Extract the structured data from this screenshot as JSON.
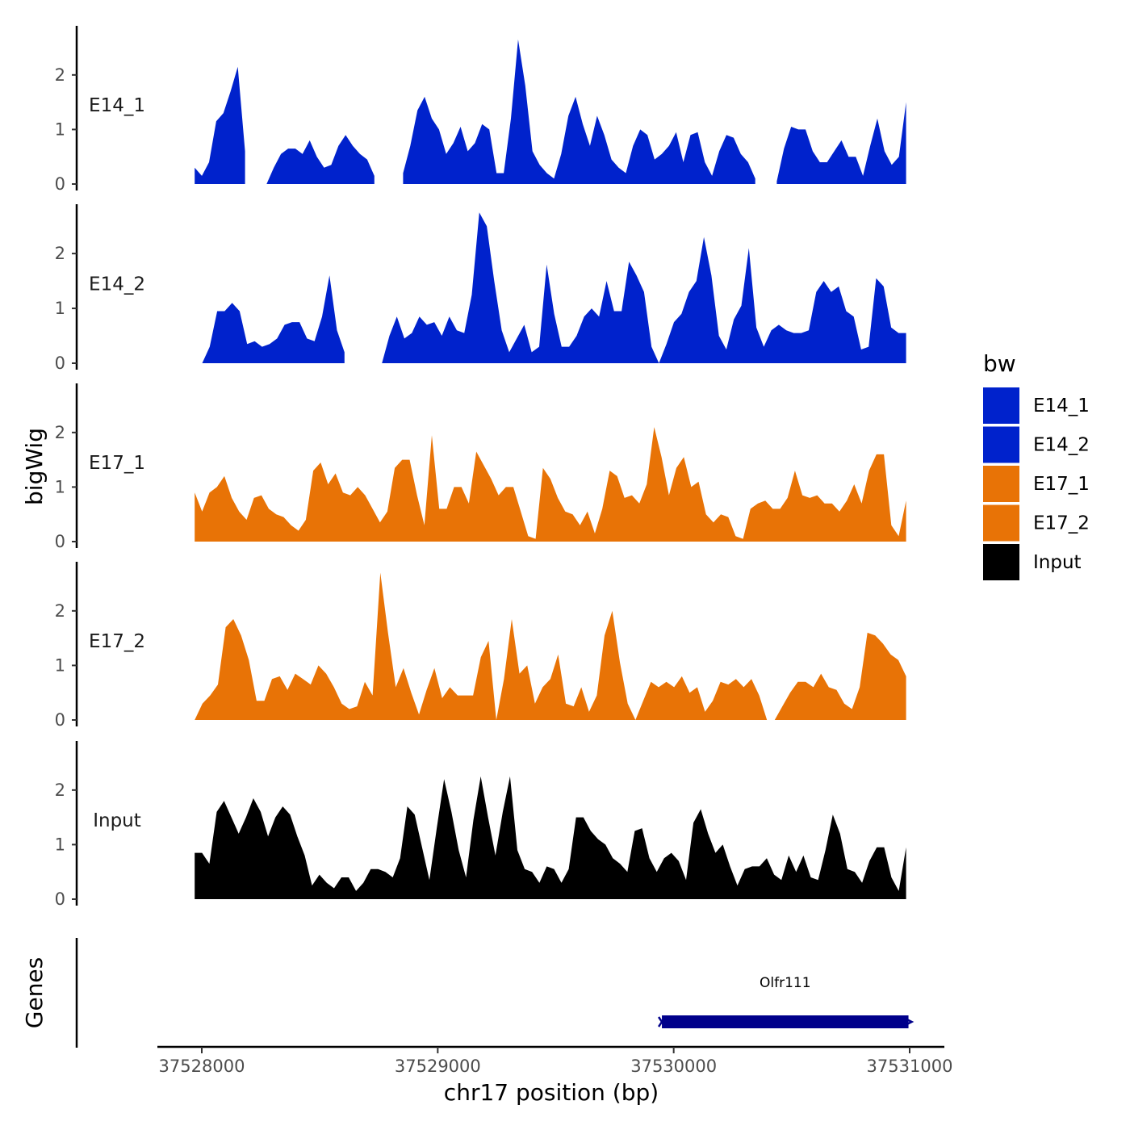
{
  "chart_data": {
    "type": "area",
    "ylabel": "bigWig",
    "xlabel": "chr17 position (bp)",
    "xlim": [
      37527850,
      37531150
    ],
    "data_xrange": [
      37527970,
      37530985
    ],
    "ylim": [
      0,
      2.9
    ],
    "y_ticks": [
      "0",
      "1",
      "2"
    ],
    "x_ticks": [
      {
        "value": 37528000,
        "label": "37528000"
      },
      {
        "value": 37529000,
        "label": "37529000"
      },
      {
        "value": 37530000,
        "label": "37530000"
      },
      {
        "value": 37531000,
        "label": "37531000"
      }
    ],
    "legend": {
      "title": "bw",
      "entries": [
        {
          "label": "E14_1",
          "color": "#0022CC"
        },
        {
          "label": "E14_2",
          "color": "#0022CC"
        },
        {
          "label": "E17_1",
          "color": "#E87306"
        },
        {
          "label": "E17_2",
          "color": "#E87306"
        },
        {
          "label": "Input",
          "color": "#000000"
        }
      ]
    },
    "tracks": [
      {
        "name": "E14_1",
        "color": "#0022CC",
        "values": [
          0.3,
          0.15,
          0.4,
          1.15,
          1.3,
          1.7,
          2.15,
          0.6,
          null,
          null,
          0.0,
          0.3,
          0.55,
          0.65,
          0.65,
          0.55,
          0.8,
          0.5,
          0.3,
          0.35,
          0.7,
          0.9,
          0.7,
          0.55,
          0.45,
          0.15,
          null,
          null,
          null,
          0.2,
          0.7,
          1.35,
          1.6,
          1.2,
          1.0,
          0.55,
          0.75,
          1.05,
          0.6,
          0.75,
          1.1,
          1.0,
          0.2,
          0.2,
          1.2,
          2.65,
          1.8,
          0.6,
          0.35,
          0.2,
          0.1,
          0.55,
          1.25,
          1.6,
          1.1,
          0.7,
          1.25,
          0.9,
          0.45,
          0.3,
          0.2,
          0.7,
          1.0,
          0.9,
          0.45,
          0.55,
          0.7,
          0.95,
          0.4,
          0.9,
          0.95,
          0.4,
          0.15,
          0.6,
          0.9,
          0.85,
          0.55,
          0.4,
          0.1,
          null,
          null,
          0.05,
          0.65,
          1.05,
          1.0,
          1.0,
          0.6,
          0.4,
          0.4,
          0.6,
          0.8,
          0.5,
          0.5,
          0.15,
          0.7,
          1.2,
          0.6,
          0.35,
          0.5,
          1.5
        ]
      },
      {
        "name": "E14_2",
        "color": "#0022CC",
        "values": [
          0.0,
          0.0,
          0.3,
          0.95,
          0.95,
          1.1,
          0.95,
          0.35,
          0.4,
          0.3,
          0.35,
          0.45,
          0.7,
          0.75,
          0.75,
          0.45,
          0.4,
          0.85,
          1.6,
          0.6,
          0.2,
          null,
          null,
          null,
          0.0,
          0.0,
          0.5,
          0.85,
          0.45,
          0.55,
          0.85,
          0.7,
          0.75,
          0.5,
          0.85,
          0.6,
          0.55,
          1.25,
          2.75,
          2.5,
          1.5,
          0.6,
          0.2,
          0.45,
          0.7,
          0.2,
          0.3,
          1.8,
          0.9,
          0.3,
          0.3,
          0.5,
          0.85,
          1.0,
          0.85,
          1.5,
          0.95,
          0.95,
          1.85,
          1.6,
          1.3,
          0.3,
          0.0,
          0.35,
          0.75,
          0.9,
          1.3,
          1.5,
          2.3,
          1.6,
          0.5,
          0.25,
          0.8,
          1.05,
          2.1,
          0.65,
          0.3,
          0.6,
          0.7,
          0.6,
          0.55,
          0.55,
          0.6,
          1.3,
          1.5,
          1.3,
          1.4,
          0.95,
          0.85,
          0.25,
          0.3,
          1.55,
          1.4,
          0.65,
          0.55,
          0.55
        ]
      },
      {
        "name": "E17_1",
        "color": "#E87306",
        "values": [
          0.9,
          0.55,
          0.9,
          1.0,
          1.2,
          0.8,
          0.55,
          0.4,
          0.8,
          0.85,
          0.6,
          0.5,
          0.45,
          0.3,
          0.2,
          0.4,
          1.3,
          1.45,
          1.05,
          1.25,
          0.9,
          0.85,
          1.0,
          0.85,
          0.6,
          0.35,
          0.55,
          1.35,
          1.5,
          1.5,
          0.85,
          0.3,
          1.95,
          0.6,
          0.6,
          1.0,
          1.0,
          0.7,
          1.65,
          1.4,
          1.15,
          0.85,
          1.0,
          1.0,
          0.55,
          0.1,
          0.05,
          1.35,
          1.15,
          0.8,
          0.55,
          0.5,
          0.3,
          0.55,
          0.15,
          0.6,
          1.3,
          1.2,
          0.8,
          0.85,
          0.7,
          1.05,
          2.1,
          1.55,
          0.85,
          1.35,
          1.55,
          1.0,
          1.1,
          0.5,
          0.35,
          0.5,
          0.45,
          0.1,
          0.05,
          0.6,
          0.7,
          0.75,
          0.6,
          0.6,
          0.8,
          1.3,
          0.85,
          0.8,
          0.85,
          0.7,
          0.7,
          0.55,
          0.75,
          1.05,
          0.7,
          1.3,
          1.6,
          1.6,
          0.3,
          0.1,
          0.75
        ]
      },
      {
        "name": "E17_2",
        "color": "#E87306",
        "values": [
          0.0,
          0.3,
          0.45,
          0.65,
          1.7,
          1.85,
          1.55,
          1.1,
          0.35,
          0.35,
          0.75,
          0.8,
          0.55,
          0.85,
          0.75,
          0.65,
          1.0,
          0.85,
          0.6,
          0.3,
          0.2,
          0.25,
          0.7,
          0.45,
          2.7,
          1.6,
          0.6,
          0.95,
          0.5,
          0.1,
          0.55,
          0.95,
          0.4,
          0.6,
          0.45,
          0.45,
          0.45,
          1.15,
          1.45,
          0.0,
          0.75,
          1.85,
          0.85,
          1.0,
          0.3,
          0.6,
          0.75,
          1.2,
          0.3,
          0.25,
          0.6,
          0.15,
          0.45,
          1.55,
          2.0,
          1.05,
          0.3,
          0.0,
          0.35,
          0.7,
          0.6,
          0.7,
          0.6,
          0.8,
          0.5,
          0.6,
          0.15,
          0.35,
          0.7,
          0.65,
          0.75,
          0.6,
          0.75,
          0.45,
          0.0,
          0.0,
          0.25,
          0.5,
          0.7,
          0.7,
          0.6,
          0.85,
          0.6,
          0.55,
          0.3,
          0.2,
          0.6,
          1.6,
          1.55,
          1.4,
          1.2,
          1.1,
          0.8
        ]
      },
      {
        "name": "Input",
        "color": "#000000",
        "values": [
          0.85,
          0.85,
          0.65,
          1.6,
          1.8,
          1.5,
          1.2,
          1.5,
          1.85,
          1.6,
          1.15,
          1.5,
          1.7,
          1.55,
          1.15,
          0.8,
          0.25,
          0.45,
          0.3,
          0.2,
          0.4,
          0.4,
          0.15,
          0.3,
          0.55,
          0.55,
          0.5,
          0.4,
          0.75,
          1.7,
          1.55,
          0.95,
          0.35,
          1.3,
          2.2,
          1.6,
          0.9,
          0.4,
          1.45,
          2.25,
          1.5,
          0.8,
          1.6,
          2.25,
          0.9,
          0.55,
          0.5,
          0.3,
          0.6,
          0.55,
          0.3,
          0.55,
          1.5,
          1.5,
          1.25,
          1.1,
          1.0,
          0.75,
          0.65,
          0.5,
          1.25,
          1.3,
          0.75,
          0.5,
          0.75,
          0.85,
          0.7,
          0.35,
          1.4,
          1.65,
          1.2,
          0.85,
          1.0,
          0.6,
          0.25,
          0.55,
          0.6,
          0.6,
          0.75,
          0.45,
          0.35,
          0.8,
          0.5,
          0.8,
          0.4,
          0.35,
          0.9,
          1.55,
          1.2,
          0.55,
          0.5,
          0.3,
          0.7,
          0.95,
          0.95,
          0.4,
          0.15,
          0.95
        ]
      }
    ],
    "genes_track": {
      "label": "Genes",
      "genes": [
        {
          "name": "Olfr111",
          "start": 37529950,
          "end": 37530995,
          "strand": "-",
          "color": "#00008B"
        }
      ]
    }
  }
}
